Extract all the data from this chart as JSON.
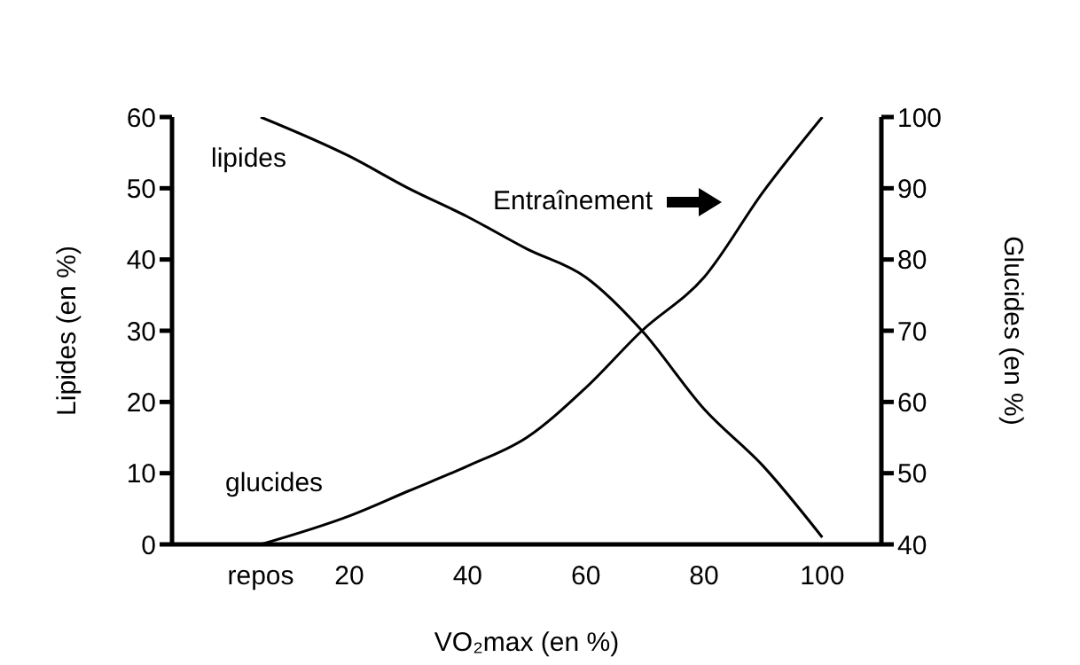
{
  "chart_data": {
    "type": "line",
    "xlabel": "VO₂max (en %)",
    "ylabel": "Lipides (en %)",
    "y2label": "Glucides (en %)",
    "x": [
      5,
      20,
      30,
      40,
      50,
      60,
      69.5,
      80,
      90,
      100
    ],
    "xlim": [
      -10,
      110
    ],
    "xticks": [
      {
        "value": 5,
        "label": "repos"
      },
      20,
      40,
      60,
      80,
      100
    ],
    "ylim": [
      0,
      60
    ],
    "yticks": [
      0,
      10,
      20,
      30,
      40,
      50,
      60
    ],
    "y2lim": [
      40,
      100
    ],
    "y2ticks": [
      40,
      50,
      60,
      70,
      80,
      90,
      100
    ],
    "series": [
      {
        "name": "lipides",
        "color": "#000000",
        "values": [
          60,
          54.5,
          50,
          46,
          41.5,
          37.5,
          30,
          19,
          11,
          1
        ]
      },
      {
        "name": "glucides",
        "color": "#000000",
        "axis": "y2",
        "values": [
          40,
          44,
          47.5,
          51,
          55,
          62,
          70,
          77.5,
          89.5,
          100
        ]
      }
    ],
    "annotations": [
      "Entraînement"
    ],
    "grid": false,
    "legend": false,
    "marker": "none",
    "line_style": "solid"
  }
}
